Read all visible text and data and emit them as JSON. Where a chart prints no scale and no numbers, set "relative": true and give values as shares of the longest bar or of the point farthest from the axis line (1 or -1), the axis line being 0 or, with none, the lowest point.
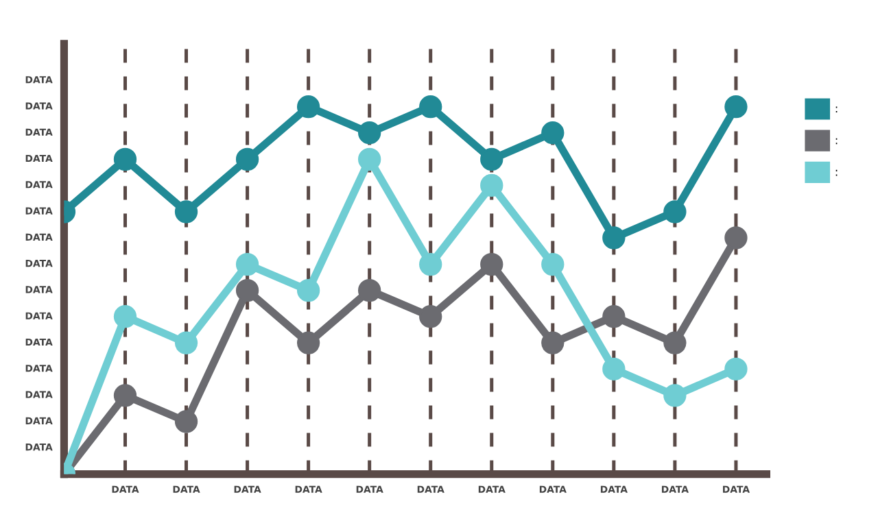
{
  "chart_data": {
    "type": "line",
    "relative": true,
    "categories": [
      null,
      "DATA",
      "DATA",
      "DATA",
      "DATA",
      "DATA",
      "DATA",
      "DATA",
      "DATA",
      "DATA",
      "DATA",
      "DATA"
    ],
    "series": [
      {
        "name": ":",
        "color": "#218a96",
        "values": [
          0.714,
          0.857,
          0.714,
          0.857,
          1,
          0.929,
          1,
          0.857,
          0.929,
          0.643,
          0.714,
          1
        ]
      },
      {
        "name": ":",
        "color": "#6b6b70",
        "values": [
          0,
          0.214,
          0.143,
          0.5,
          0.357,
          0.5,
          0.429,
          0.571,
          0.357,
          0.429,
          0.357,
          0.643
        ]
      },
      {
        "name": ":",
        "color": "#6fcdd3",
        "values": [
          0,
          0.429,
          0.357,
          0.571,
          0.5,
          0.857,
          0.571,
          0.786,
          0.571,
          0.286,
          0.214,
          0.286
        ]
      }
    ],
    "annotations": [
      "DATA",
      "DATA",
      "DATA",
      "DATA",
      "DATA",
      "DATA",
      "DATA",
      "DATA",
      "DATA",
      "DATA",
      "DATA",
      "DATA",
      "DATA",
      "DATA",
      "DATA"
    ],
    "grid": "x",
    "line_style": "solid",
    "marker": "circle",
    "legend": "right"
  }
}
